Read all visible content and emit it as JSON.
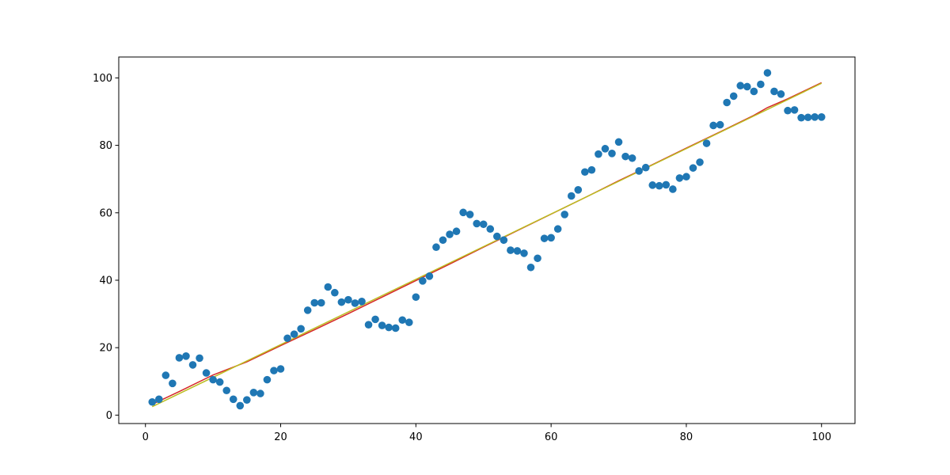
{
  "chart_data": {
    "type": "scatter",
    "xlim": [
      -3.95,
      104.95
    ],
    "ylim": [
      -2.5,
      106.2
    ],
    "x_ticks": [
      0,
      20,
      40,
      60,
      80,
      100
    ],
    "y_ticks": [
      0,
      20,
      40,
      60,
      80,
      100
    ],
    "grid": false,
    "colors": {
      "points": "#1f77b4",
      "fit_line_1": "#d62728",
      "fit_line_2": "#bcbd22",
      "axes": "#000000"
    },
    "series": [
      {
        "type": "scatter",
        "x": [
          1,
          2,
          3,
          4,
          5,
          6,
          7,
          8,
          9,
          10,
          11,
          12,
          13,
          14,
          15,
          16,
          17,
          18,
          19,
          20,
          21,
          22,
          23,
          24,
          25,
          26,
          27,
          28,
          29,
          30,
          31,
          32,
          33,
          34,
          35,
          36,
          37,
          38,
          39,
          40,
          41,
          42,
          43,
          44,
          45,
          46,
          47,
          48,
          49,
          50,
          51,
          52,
          53,
          54,
          55,
          56,
          57,
          58,
          59,
          60,
          61,
          62,
          63,
          64,
          65,
          66,
          67,
          68,
          69,
          70,
          71,
          72,
          73,
          74,
          75,
          76,
          77,
          78,
          79,
          80,
          81,
          82,
          83,
          84,
          85,
          86,
          87,
          88,
          89,
          90,
          91,
          92,
          93,
          94,
          95,
          96,
          97,
          98,
          99,
          100
        ],
        "y": [
          3.9,
          4.7,
          11.8,
          9.4,
          17,
          17.5,
          14.9,
          16.9,
          12.5,
          10.5,
          9.8,
          7.3,
          4.7,
          2.8,
          4.5,
          6.7,
          6.4,
          10.5,
          13.2,
          13.7,
          22.8,
          24,
          25.6,
          31.1,
          33.3,
          33.3,
          38,
          36.3,
          33.5,
          34.2,
          33.2,
          33.7,
          26.8,
          28.4,
          26.6,
          26,
          25.8,
          28.2,
          27.5,
          35,
          39.8,
          41.2,
          49.8,
          51.9,
          53.6,
          54.5,
          60.1,
          59.5,
          56.8,
          56.6,
          55.2,
          53,
          51.9,
          48.9,
          48.7,
          48,
          43.8,
          46.5,
          52.4,
          52.6,
          55.2,
          59.5,
          65,
          66.8,
          72.1,
          72.7,
          77.4,
          79,
          77.6,
          81,
          76.7,
          76.2,
          72.4,
          73.4,
          68.2,
          68,
          68.3,
          67,
          70.3,
          70.7,
          73.3,
          75,
          80.6,
          85.9,
          86.1,
          92.7,
          94.6,
          97.7,
          97.4,
          96,
          98.1,
          101.5,
          96,
          95.2,
          90.3,
          90.5,
          88.2,
          88.3,
          88.4,
          88.4
        ]
      },
      {
        "type": "line",
        "x": [
          1,
          5,
          10,
          15,
          20,
          25,
          30,
          35,
          40,
          45,
          50,
          55,
          60,
          65,
          70,
          75,
          80,
          85,
          90,
          92,
          95,
          100
        ],
        "y": [
          3.2,
          7.0,
          11.9,
          15.8,
          20.6,
          25.3,
          30.1,
          35.0,
          39.9,
          44.8,
          49.8,
          54.7,
          59.6,
          64.5,
          69.5,
          74.3,
          79.2,
          84.0,
          88.9,
          91.2,
          93.8,
          98.6
        ]
      },
      {
        "type": "line",
        "x": [
          1,
          100
        ],
        "y": [
          2.5,
          98.4
        ]
      }
    ]
  }
}
